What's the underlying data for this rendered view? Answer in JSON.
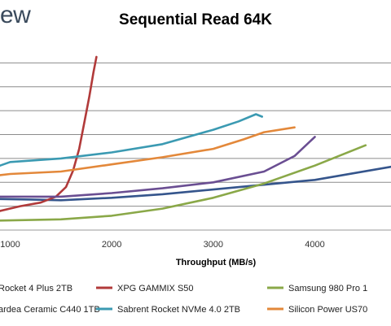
{
  "brand": {
    "logo_text": "ew"
  },
  "chart_data": {
    "type": "line",
    "title": "Sequential Read 64K",
    "xlabel": "Throughput (MB/s)",
    "ylabel": "",
    "xlim": [
      900,
      4750
    ],
    "ylim": [
      0,
      8
    ],
    "x_ticks": [
      1000,
      2000,
      3000,
      4000
    ],
    "grid": true,
    "legend_position": "bottom",
    "series": [
      {
        "name": "Rocket 4 Plus 2TB",
        "color": "#35558c",
        "x": [
          900,
          1200,
          1500,
          2000,
          2500,
          3000,
          3500,
          4000,
          4750
        ],
        "y": [
          1.3,
          1.28,
          1.25,
          1.35,
          1.5,
          1.7,
          1.9,
          2.1,
          2.65
        ]
      },
      {
        "name": "XPG GAMMIX S50",
        "color": "#b13a3a",
        "x": [
          900,
          1100,
          1300,
          1450,
          1550,
          1620,
          1680,
          1730,
          1780,
          1820,
          1850
        ],
        "y": [
          0.8,
          1.0,
          1.15,
          1.4,
          1.8,
          2.5,
          3.4,
          4.5,
          5.6,
          6.6,
          7.25
        ]
      },
      {
        "name": "Samsung 980 Pro 1",
        "color": "#8aa848",
        "x": [
          900,
          1500,
          2000,
          2500,
          3000,
          3500,
          4000,
          4500
        ],
        "y": [
          0.4,
          0.45,
          0.6,
          0.9,
          1.35,
          1.95,
          2.7,
          3.55
        ]
      },
      {
        "name": "ardea Ceramic C440 1TB",
        "color": "#6a4e92",
        "x": [
          900,
          1500,
          2000,
          2500,
          3000,
          3500,
          3800,
          4000
        ],
        "y": [
          1.4,
          1.4,
          1.55,
          1.75,
          2.0,
          2.45,
          3.1,
          3.9
        ]
      },
      {
        "name": "Sabrent Rocket NVMe 4.0 2TB",
        "color": "#3b9ab2",
        "x": [
          900,
          1000,
          1500,
          2000,
          2500,
          3000,
          3250,
          3420,
          3480
        ],
        "y": [
          2.7,
          2.85,
          3.0,
          3.25,
          3.6,
          4.2,
          4.55,
          4.85,
          4.75
        ]
      },
      {
        "name": "Silicon Power US70",
        "color": "#e3883a",
        "x": [
          900,
          1000,
          1500,
          2000,
          2500,
          3000,
          3300,
          3500,
          3800
        ],
        "y": [
          2.3,
          2.35,
          2.45,
          2.75,
          3.05,
          3.4,
          3.8,
          4.1,
          4.3
        ]
      }
    ]
  }
}
